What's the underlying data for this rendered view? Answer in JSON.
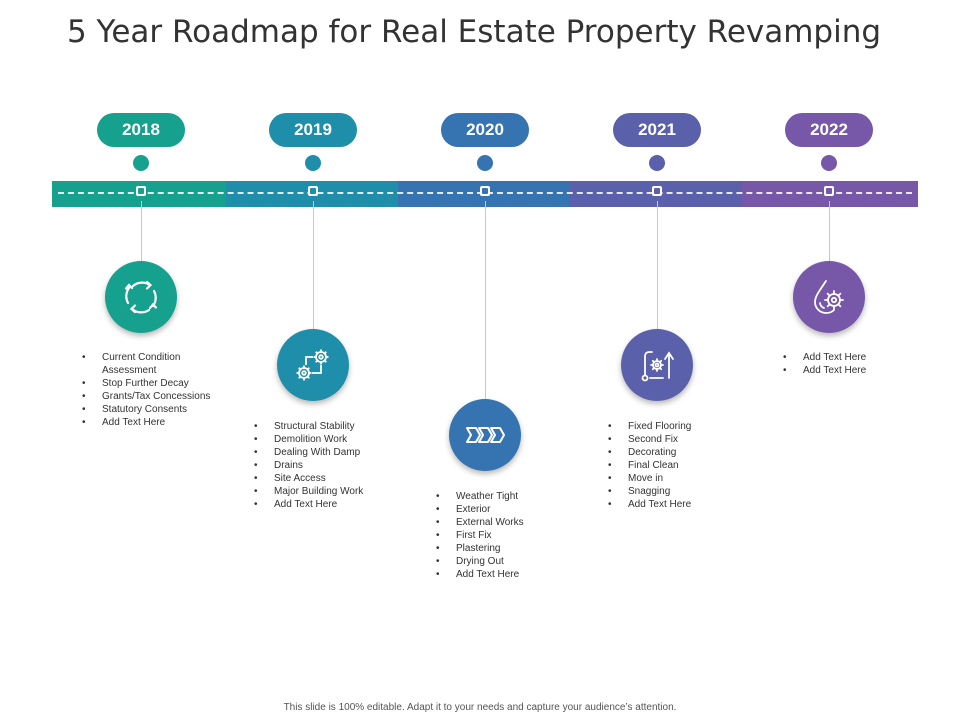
{
  "title": "5 Year Roadmap for Real Estate Property Revamping",
  "colors": [
    "#16A08E",
    "#1E8EAA",
    "#3673B1",
    "#5A60A9",
    "#7757A7"
  ],
  "years": [
    {
      "label": "2018",
      "icon": "cycle-arrows-icon",
      "items": [
        "Current Condition Assessment",
        "Stop Further Decay",
        "Grants/Tax Concessions",
        "Statutory Consents",
        "Add Text Here"
      ]
    },
    {
      "label": "2019",
      "icon": "gears-flow-icon",
      "items": [
        "Structural Stability",
        "Demolition Work",
        "Dealing With Damp",
        "Drains",
        "Site Access",
        "Major Building Work",
        "Add Text Here"
      ]
    },
    {
      "label": "2020",
      "icon": "chevrons-icon",
      "items": [
        "Weather Tight",
        "Exterior",
        "External Works",
        "First Fix",
        "Plastering",
        "Drying Out",
        "Add Text Here"
      ]
    },
    {
      "label": "2021",
      "icon": "gear-process-icon",
      "items": [
        " Fixed Flooring",
        "Second Fix",
        "Decorating",
        "Final Clean",
        "Move in",
        "Snagging",
        "Add Text Here"
      ]
    },
    {
      "label": "2022",
      "icon": "drop-gear-icon",
      "items": [
        "Add Text Here",
        "Add Text Here"
      ]
    }
  ],
  "footer": "This slide is 100% editable. Adapt it to your needs and capture your audience’s attention."
}
